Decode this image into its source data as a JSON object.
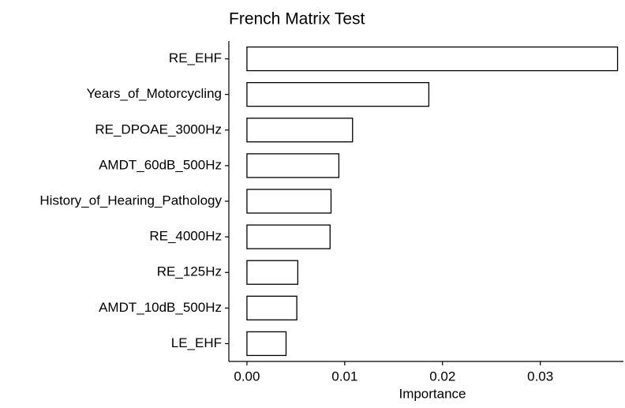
{
  "chart_data": {
    "type": "bar",
    "orientation": "horizontal",
    "title": "French Matrix Test",
    "xlabel": "Importance",
    "categories": [
      "RE_EHF",
      "Years_of_Motorcycling",
      "RE_DPOAE_3000Hz",
      "AMDT_60dB_500Hz",
      "History_of_Hearing_Pathology",
      "RE_4000Hz",
      "RE_125Hz",
      "AMDT_10dB_500Hz",
      "LE_EHF"
    ],
    "values": [
      0.0379,
      0.0186,
      0.0108,
      0.0094,
      0.0086,
      0.0085,
      0.0052,
      0.0051,
      0.004
    ],
    "color": "#ffffff",
    "edgecolor": "#000000",
    "xlim": [
      -0.00185,
      0.0385
    ],
    "xticks": [
      {
        "value": 0,
        "label": "0.00"
      },
      {
        "value": 0.01,
        "label": "0.01"
      },
      {
        "value": 0.02,
        "label": "0.02"
      },
      {
        "value": 0.03,
        "label": "0.03"
      }
    ],
    "grid": false
  }
}
